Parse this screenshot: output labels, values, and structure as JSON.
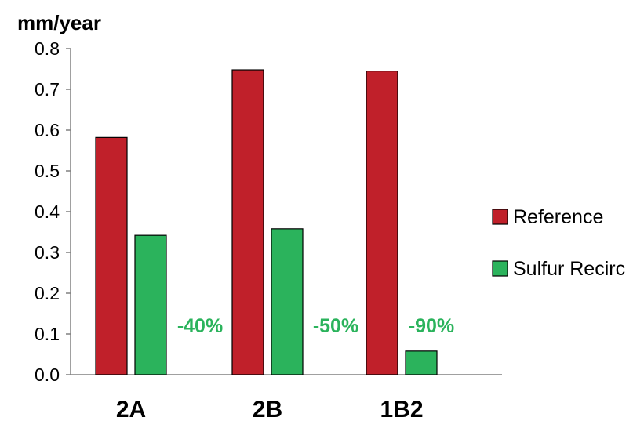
{
  "chart_data": {
    "type": "bar",
    "ylabel": "mm/year",
    "ylim": [
      0,
      0.8
    ],
    "yticks": [
      "0.0",
      "0.1",
      "0.2",
      "0.3",
      "0.4",
      "0.5",
      "0.6",
      "0.7",
      "0.8"
    ],
    "categories": [
      "2A",
      "2B",
      "1B2"
    ],
    "series": [
      {
        "name": "Reference",
        "color": "#c0202a",
        "values": [
          0.582,
          0.748,
          0.745
        ]
      },
      {
        "name": "Sulfur Recirc",
        "color": "#2bb35c",
        "values": [
          0.342,
          0.358,
          0.058
        ]
      }
    ],
    "annotations": [
      "-40%",
      "-50%",
      "-90%"
    ],
    "annotation_color": "#2bb35c",
    "legend_position": "right"
  }
}
